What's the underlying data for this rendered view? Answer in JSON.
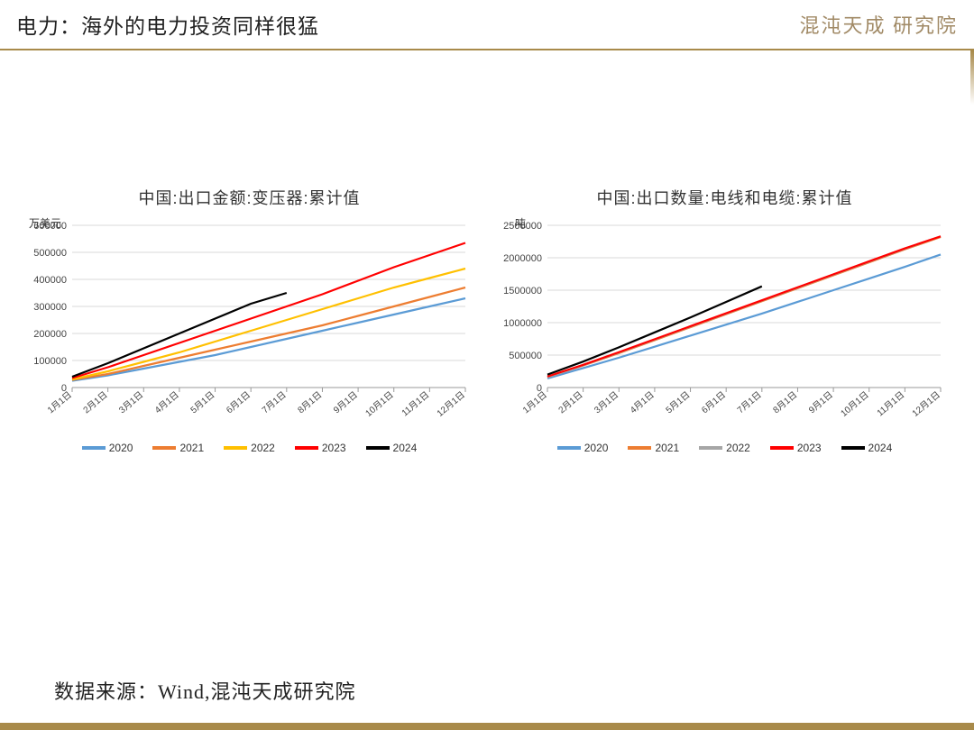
{
  "page_title": "电力：海外的电力投资同样很猛",
  "logo_text": "混沌天成 研究院",
  "footer_text": "数据来源：Wind,混沌天成研究院",
  "colors": {
    "accent": "#a88a4a",
    "grid": "#d9d9d9",
    "axis": "#999999",
    "bg": "#ffffff"
  },
  "x_labels": [
    "1月1日",
    "2月1日",
    "3月1日",
    "4月1日",
    "5月1日",
    "6月1日",
    "7月1日",
    "8月1日",
    "9月1日",
    "10月1日",
    "11月1日",
    "12月1日"
  ],
  "chart1": {
    "title": "中国:出口金额:变压器:累计值",
    "y_unit": "万美元",
    "ylim": [
      0,
      600000
    ],
    "ytick_step": 100000,
    "series": [
      {
        "name": "2020",
        "color": "#5b9bd5",
        "points": [
          25000,
          45000,
          70000,
          95000,
          120000,
          150000,
          180000,
          210000,
          240000,
          270000,
          300000,
          330000
        ]
      },
      {
        "name": "2021",
        "color": "#ed7d31",
        "points": [
          28000,
          50000,
          80000,
          110000,
          140000,
          170000,
          200000,
          230000,
          265000,
          300000,
          335000,
          370000
        ]
      },
      {
        "name": "2022",
        "color": "#ffc000",
        "points": [
          30000,
          60000,
          95000,
          130000,
          170000,
          210000,
          250000,
          290000,
          330000,
          370000,
          405000,
          440000
        ]
      },
      {
        "name": "2023",
        "color": "#ff0000",
        "points": [
          35000,
          75000,
          120000,
          165000,
          210000,
          255000,
          300000,
          345000,
          395000,
          445000,
          490000,
          535000
        ]
      },
      {
        "name": "2024",
        "color": "#000000",
        "points": [
          40000,
          90000,
          145000,
          200000,
          255000,
          310000,
          350000
        ]
      }
    ]
  },
  "chart2": {
    "title": "中国:出口数量:电线和电缆:累计值",
    "y_unit": "吨",
    "ylim": [
      0,
      2500000
    ],
    "ytick_step": 500000,
    "series": [
      {
        "name": "2020",
        "color": "#5b9bd5",
        "points": [
          140000,
          300000,
          460000,
          630000,
          800000,
          970000,
          1140000,
          1320000,
          1500000,
          1680000,
          1860000,
          2050000
        ]
      },
      {
        "name": "2021",
        "color": "#ed7d31",
        "points": [
          160000,
          340000,
          530000,
          730000,
          930000,
          1130000,
          1330000,
          1530000,
          1730000,
          1930000,
          2130000,
          2320000
        ]
      },
      {
        "name": "2022",
        "color": "#a6a6a6",
        "points": [
          160000,
          345000,
          540000,
          740000,
          940000,
          1140000,
          1340000,
          1540000,
          1740000,
          1940000,
          2140000,
          2330000
        ]
      },
      {
        "name": "2023",
        "color": "#ff0000",
        "points": [
          170000,
          350000,
          545000,
          745000,
          945000,
          1145000,
          1345000,
          1545000,
          1745000,
          1945000,
          2145000,
          2330000
        ]
      },
      {
        "name": "2024",
        "color": "#000000",
        "points": [
          200000,
          400000,
          620000,
          850000,
          1080000,
          1320000,
          1560000
        ]
      }
    ]
  }
}
